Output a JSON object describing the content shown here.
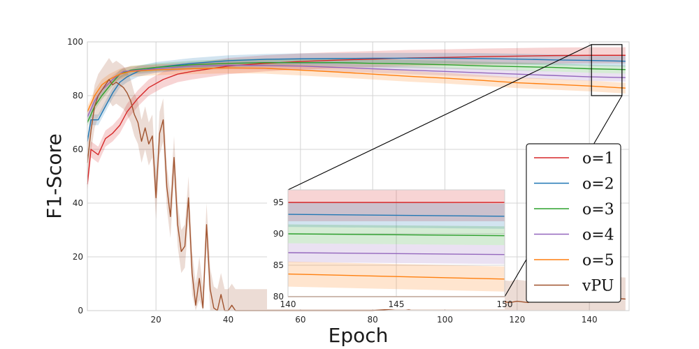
{
  "chart_data": {
    "type": "line",
    "xlabel": "Epoch",
    "ylabel": "F1-Score",
    "xlim": [
      1,
      151
    ],
    "ylim": [
      0,
      100
    ],
    "xticks": [
      20,
      40,
      60,
      80,
      100,
      120,
      140
    ],
    "yticks": [
      0,
      20,
      40,
      60,
      80,
      100
    ],
    "grid": true,
    "legend_position": "lower-right",
    "colors": {
      "o=1": "#d62728",
      "o=2": "#1f77b4",
      "o=3": "#2ca02c",
      "o=4": "#9467bd",
      "o=5": "#ff7f0e",
      "vPU": "#a0522d"
    },
    "series": [
      {
        "name": "o=1",
        "band": 3,
        "points": [
          [
            1,
            47
          ],
          [
            2,
            60
          ],
          [
            4,
            58
          ],
          [
            6,
            64
          ],
          [
            8,
            66
          ],
          [
            10,
            69
          ],
          [
            12,
            74
          ],
          [
            15,
            79
          ],
          [
            18,
            83
          ],
          [
            22,
            86
          ],
          [
            26,
            88
          ],
          [
            30,
            89
          ],
          [
            40,
            91
          ],
          [
            50,
            92
          ],
          [
            60,
            92.7
          ],
          [
            70,
            93.2
          ],
          [
            80,
            93.6
          ],
          [
            90,
            94
          ],
          [
            100,
            94.2
          ],
          [
            110,
            94.5
          ],
          [
            120,
            94.7
          ],
          [
            130,
            94.9
          ],
          [
            140,
            95
          ],
          [
            150,
            95
          ]
        ]
      },
      {
        "name": "o=2",
        "band": 2,
        "points": [
          [
            1,
            63
          ],
          [
            2,
            71
          ],
          [
            4,
            71
          ],
          [
            6,
            76
          ],
          [
            8,
            81
          ],
          [
            10,
            85
          ],
          [
            12,
            87
          ],
          [
            15,
            89
          ],
          [
            20,
            90.5
          ],
          [
            30,
            92
          ],
          [
            40,
            93
          ],
          [
            50,
            93.5
          ],
          [
            60,
            93.7
          ],
          [
            70,
            93.8
          ],
          [
            80,
            93.9
          ],
          [
            90,
            93.9
          ],
          [
            100,
            93.9
          ],
          [
            110,
            93.8
          ],
          [
            120,
            93.6
          ],
          [
            130,
            93.3
          ],
          [
            140,
            93.1
          ],
          [
            150,
            92.8
          ]
        ]
      },
      {
        "name": "o=3",
        "band": 1.5,
        "points": [
          [
            1,
            70
          ],
          [
            3,
            76
          ],
          [
            5,
            80
          ],
          [
            8,
            85
          ],
          [
            10,
            88
          ],
          [
            13,
            89.5
          ],
          [
            20,
            90.5
          ],
          [
            30,
            91.5
          ],
          [
            40,
            92
          ],
          [
            50,
            92.3
          ],
          [
            60,
            92.3
          ],
          [
            70,
            92.3
          ],
          [
            80,
            92
          ],
          [
            90,
            91.8
          ],
          [
            100,
            91.5
          ],
          [
            110,
            91.1
          ],
          [
            120,
            90.8
          ],
          [
            130,
            90.5
          ],
          [
            140,
            90
          ],
          [
            150,
            89.7
          ]
        ]
      },
      {
        "name": "o=4",
        "band": 1.5,
        "points": [
          [
            1,
            72
          ],
          [
            3,
            78
          ],
          [
            5,
            82
          ],
          [
            8,
            86
          ],
          [
            11,
            89
          ],
          [
            15,
            89.5
          ],
          [
            20,
            90
          ],
          [
            30,
            91
          ],
          [
            40,
            91.3
          ],
          [
            50,
            91.2
          ],
          [
            60,
            91
          ],
          [
            70,
            90.5
          ],
          [
            80,
            90
          ],
          [
            90,
            89.5
          ],
          [
            100,
            89
          ],
          [
            110,
            88.5
          ],
          [
            120,
            88
          ],
          [
            130,
            87.5
          ],
          [
            140,
            87
          ],
          [
            150,
            86.7
          ]
        ]
      },
      {
        "name": "o=5",
        "band": 2,
        "points": [
          [
            1,
            74
          ],
          [
            3,
            80
          ],
          [
            5,
            84
          ],
          [
            7,
            86
          ],
          [
            10,
            88
          ],
          [
            13,
            89
          ],
          [
            20,
            89.6
          ],
          [
            30,
            90
          ],
          [
            40,
            90.3
          ],
          [
            50,
            90.2
          ],
          [
            60,
            89.5
          ],
          [
            70,
            88.8
          ],
          [
            80,
            88
          ],
          [
            90,
            87.2
          ],
          [
            100,
            86.5
          ],
          [
            110,
            85.7
          ],
          [
            120,
            84.8
          ],
          [
            130,
            84.2
          ],
          [
            140,
            83.6
          ],
          [
            150,
            82.8
          ]
        ]
      },
      {
        "name": "vPU",
        "band": 8,
        "points": [
          [
            1,
            55
          ],
          [
            2,
            67
          ],
          [
            3,
            76
          ],
          [
            4,
            80
          ],
          [
            5,
            82
          ],
          [
            6,
            84
          ],
          [
            7,
            86
          ],
          [
            8,
            84
          ],
          [
            9,
            85
          ],
          [
            10,
            84
          ],
          [
            11,
            83
          ],
          [
            12,
            81
          ],
          [
            13,
            78
          ],
          [
            14,
            73
          ],
          [
            15,
            70
          ],
          [
            16,
            63
          ],
          [
            17,
            68
          ],
          [
            18,
            62
          ],
          [
            19,
            65
          ],
          [
            20,
            42
          ],
          [
            21,
            66
          ],
          [
            22,
            71
          ],
          [
            23,
            46
          ],
          [
            24,
            35
          ],
          [
            25,
            57
          ],
          [
            26,
            32
          ],
          [
            27,
            22
          ],
          [
            28,
            24
          ],
          [
            29,
            42
          ],
          [
            30,
            14
          ],
          [
            31,
            2
          ],
          [
            32,
            12
          ],
          [
            33,
            1
          ],
          [
            34,
            32
          ],
          [
            35,
            8
          ],
          [
            36,
            1
          ],
          [
            37,
            0
          ],
          [
            38,
            6
          ],
          [
            39,
            0
          ],
          [
            40,
            0
          ],
          [
            41,
            2
          ],
          [
            42,
            0
          ],
          [
            50,
            0
          ],
          [
            60,
            0
          ],
          [
            70,
            0
          ],
          [
            80,
            0
          ],
          [
            85,
            0.5
          ],
          [
            88,
            1
          ],
          [
            90,
            0.5
          ],
          [
            93,
            1.5
          ],
          [
            95,
            1
          ],
          [
            98,
            2
          ],
          [
            100,
            1.5
          ],
          [
            103,
            2
          ],
          [
            105,
            2.5
          ],
          [
            108,
            2
          ],
          [
            110,
            3
          ],
          [
            113,
            2.5
          ],
          [
            115,
            3.5
          ],
          [
            118,
            3
          ],
          [
            120,
            3.5
          ],
          [
            123,
            3
          ],
          [
            125,
            4
          ],
          [
            128,
            3.5
          ],
          [
            130,
            4
          ],
          [
            133,
            3.5
          ],
          [
            135,
            4.5
          ],
          [
            138,
            4
          ],
          [
            140,
            4
          ],
          [
            143,
            4.5
          ],
          [
            145,
            4
          ],
          [
            148,
            4.5
          ],
          [
            150,
            4.3
          ]
        ]
      }
    ],
    "inset": {
      "xlim": [
        140,
        150
      ],
      "ylim": [
        80,
        97
      ],
      "xticks": [
        140,
        145,
        150
      ],
      "yticks": [
        80,
        85,
        90,
        95
      ],
      "zoom_box": {
        "x": [
          140,
          150
        ],
        "y": [
          80,
          99
        ]
      }
    }
  }
}
